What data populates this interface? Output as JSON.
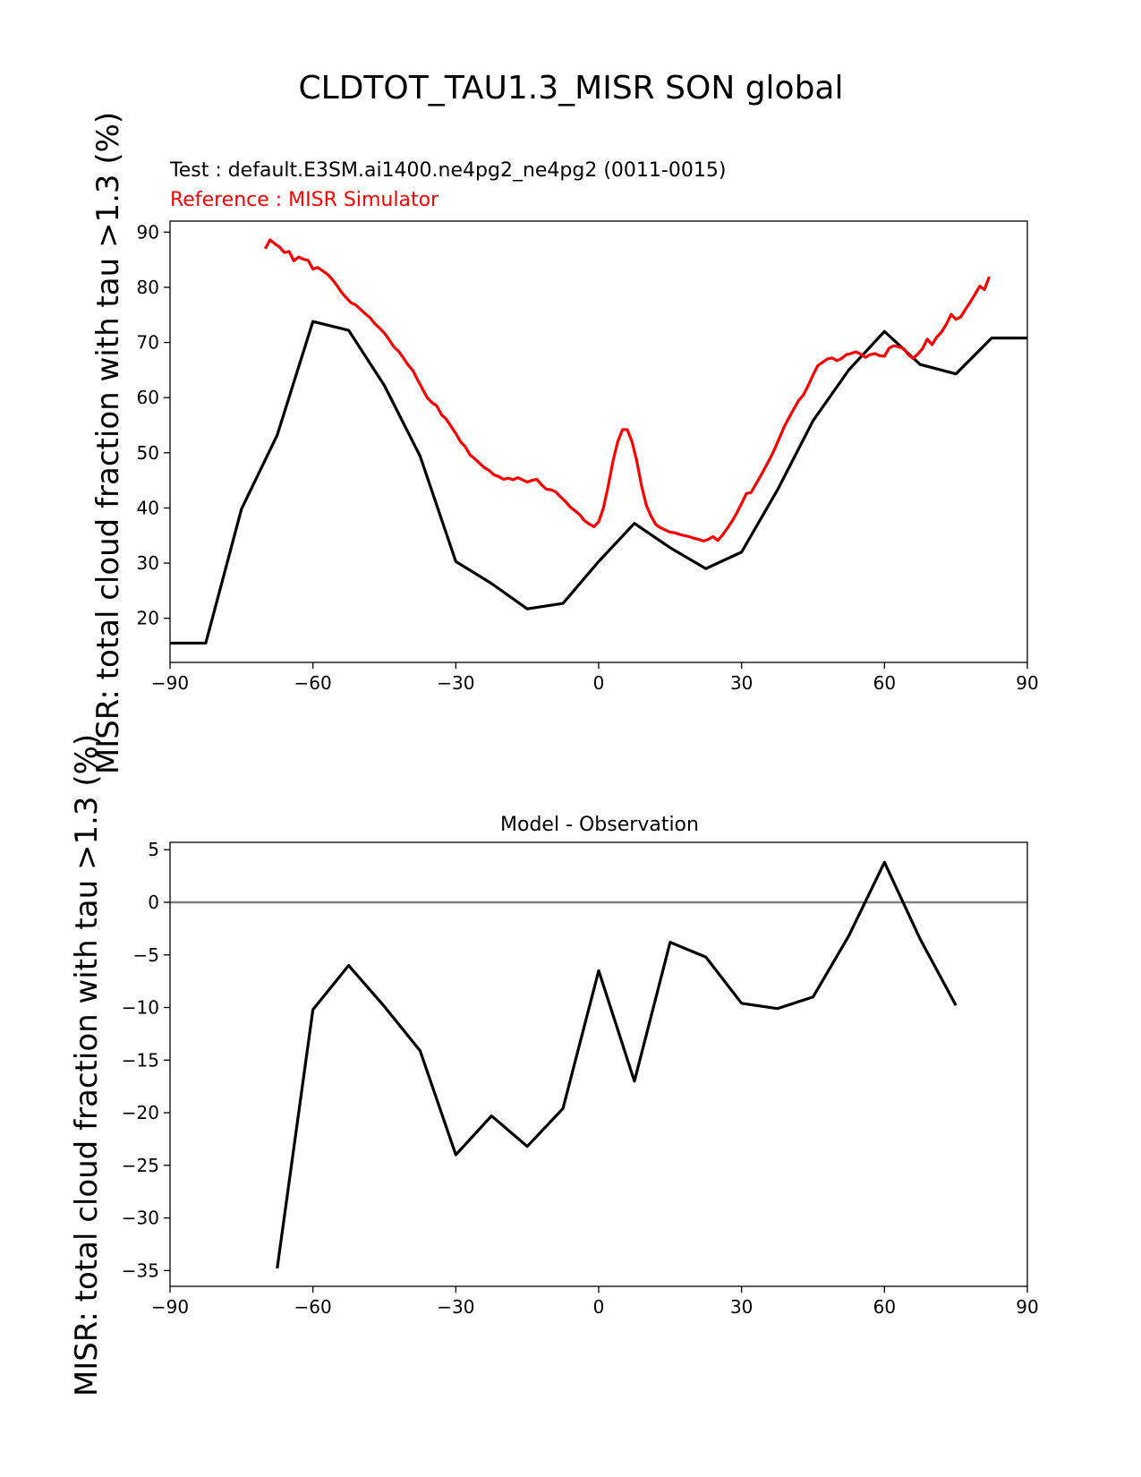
{
  "title": "CLDTOT_TAU1.3_MISR SON global",
  "chart_data": [
    {
      "type": "line",
      "test_label": "Test : default.E3SM.ai1400.ne4pg2_ne4pg2 (0011-0015)",
      "reference_label": "Reference : MISR Simulator",
      "ylabel": "MISR: total cloud fraction with tau >1.3 (%)",
      "xlim": [
        -90,
        90
      ],
      "ylim": [
        12,
        92
      ],
      "xticks": [
        -90,
        -60,
        -30,
        0,
        30,
        60,
        90
      ],
      "yticks": [
        20,
        30,
        40,
        50,
        60,
        70,
        80,
        90
      ],
      "colors": {
        "test": "#000000",
        "reference": "#ff0000"
      },
      "series": [
        {
          "role": "test",
          "x": [
            -90,
            -82.5,
            -75,
            -67.5,
            -60,
            -52.5,
            -45,
            -37.5,
            -30,
            -22.5,
            -15,
            -7.5,
            0,
            7.5,
            15,
            22.5,
            30,
            37.5,
            45,
            52.5,
            60,
            67.5,
            75,
            82.5,
            90
          ],
          "values": [
            15.5,
            15.5,
            39.8,
            53.2,
            73.8,
            72.2,
            62.2,
            49.4,
            30.3,
            26.3,
            21.7,
            22.7,
            30.3,
            37.2,
            32.8,
            29.0,
            32.0,
            43.2,
            55.8,
            65.0,
            72.0,
            66.0,
            64.3,
            70.8,
            70.8
          ]
        },
        {
          "role": "reference",
          "x": [
            -70,
            -69,
            -68,
            -67,
            -66,
            -65,
            -64,
            -63,
            -62,
            -61,
            -60,
            -59,
            -58,
            -57,
            -56,
            -55,
            -54,
            -53,
            -52,
            -51,
            -50,
            -49,
            -48,
            -47,
            -46,
            -45,
            -44,
            -43,
            -42,
            -41,
            -40,
            -39,
            -38,
            -37,
            -36,
            -35,
            -34,
            -33,
            -32,
            -31,
            -30,
            -29,
            -28,
            -27,
            -26,
            -25,
            -24,
            -23,
            -22,
            -21,
            -20,
            -19,
            -18,
            -17,
            -16,
            -15,
            -14,
            -13,
            -12,
            -11,
            -10,
            -9,
            -8,
            -7,
            -6,
            -5,
            -4,
            -3,
            -2,
            -1,
            0,
            1,
            2,
            3,
            4,
            5,
            6,
            7,
            8,
            9,
            10,
            11,
            12,
            13,
            14,
            15,
            16,
            17,
            18,
            19,
            20,
            21,
            22,
            23,
            24,
            25,
            26,
            27,
            28,
            29,
            30,
            31,
            32,
            33,
            34,
            35,
            36,
            37,
            38,
            39,
            40,
            41,
            42,
            43,
            44,
            45,
            46,
            47,
            48,
            49,
            50,
            51,
            52,
            53,
            54,
            55,
            56,
            57,
            58,
            59,
            60,
            61,
            62,
            63,
            64,
            65,
            66,
            67,
            68,
            69,
            70,
            71,
            72,
            73,
            74,
            75,
            76,
            77,
            78,
            79,
            80,
            81,
            82
          ],
          "values": [
            87.0,
            88.6,
            87.9,
            87.3,
            86.3,
            86.5,
            84.8,
            85.5,
            85.1,
            84.9,
            83.3,
            83.6,
            83.0,
            82.4,
            81.5,
            80.4,
            79.1,
            78.1,
            77.2,
            76.8,
            76.0,
            75.2,
            74.5,
            73.4,
            72.6,
            71.7,
            70.5,
            69.2,
            68.4,
            67.2,
            65.9,
            64.9,
            63.2,
            61.6,
            60.0,
            59.1,
            58.5,
            56.9,
            56.1,
            54.8,
            53.5,
            52.0,
            51.1,
            49.6,
            48.9,
            48.1,
            47.3,
            46.8,
            46.0,
            45.7,
            45.2,
            45.4,
            45.1,
            45.5,
            45.1,
            44.7,
            45.0,
            45.2,
            44.2,
            43.4,
            43.3,
            42.9,
            42.0,
            41.2,
            40.2,
            39.5,
            38.8,
            37.7,
            37.1,
            36.6,
            37.5,
            40.0,
            44.0,
            48.5,
            52.0,
            54.2,
            54.2,
            52.0,
            48.5,
            44.0,
            40.5,
            38.5,
            37.0,
            36.4,
            36.0,
            35.6,
            35.5,
            35.2,
            35.0,
            34.8,
            34.5,
            34.3,
            34.0,
            34.3,
            34.8,
            34.1,
            35.1,
            36.3,
            37.6,
            39.1,
            40.8,
            42.6,
            42.8,
            44.3,
            45.8,
            47.4,
            49.0,
            50.8,
            52.8,
            54.8,
            56.4,
            58.0,
            59.5,
            60.5,
            62.2,
            64.1,
            65.8,
            66.4,
            67.0,
            67.2,
            66.7,
            67.1,
            67.8,
            68.0,
            68.3,
            67.9,
            67.3,
            67.8,
            68.0,
            67.6,
            67.5,
            69.0,
            69.4,
            69.2,
            68.9,
            67.8,
            67.1,
            67.9,
            68.9,
            70.6,
            69.6,
            71.0,
            71.9,
            73.3,
            75.1,
            74.2,
            74.6,
            76.0,
            77.3,
            78.7,
            80.2,
            79.6,
            81.9
          ]
        }
      ]
    },
    {
      "type": "line",
      "title": "Model - Observation",
      "ylabel": "MISR: total cloud fraction with tau >1.3 (%)",
      "xlim": [
        -90,
        90
      ],
      "ylim": [
        -36.5,
        5.7
      ],
      "xticks": [
        -90,
        -60,
        -30,
        0,
        30,
        60,
        90
      ],
      "yticks": [
        5,
        0,
        -5,
        -10,
        -15,
        -20,
        -25,
        -30,
        -35
      ],
      "zero_line": 0,
      "colors": {
        "diff": "#000000",
        "zero_line": "#808080"
      },
      "series": [
        {
          "role": "diff",
          "x": [
            -67.5,
            -60,
            -52.5,
            -45,
            -37.5,
            -30,
            -22.5,
            -15,
            -7.5,
            0,
            7.5,
            15,
            22.5,
            30,
            37.5,
            45,
            52.5,
            60,
            67.5,
            75
          ],
          "values": [
            -34.8,
            -10.2,
            -6.0,
            -9.9,
            -14.1,
            -24.0,
            -20.3,
            -23.2,
            -19.6,
            -6.5,
            -17.0,
            -3.8,
            -5.2,
            -9.6,
            -10.1,
            -9.0,
            -3.2,
            3.8,
            -3.5,
            -9.8
          ]
        }
      ]
    }
  ]
}
